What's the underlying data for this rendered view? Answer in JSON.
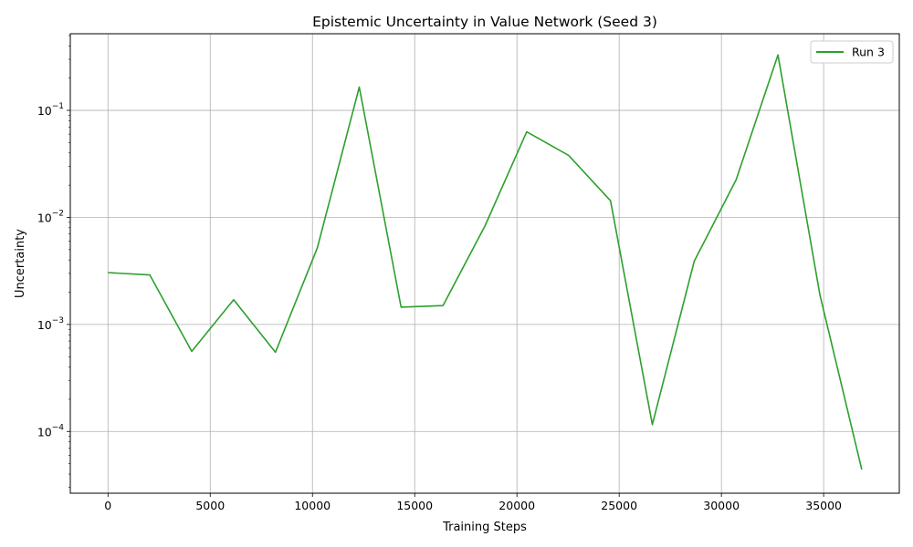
{
  "chart_data": {
    "type": "line",
    "title": "Epistemic Uncertainty in Value Network (Seed 3)",
    "xlabel": "Training Steps",
    "ylabel": "Uncertainty",
    "xlim": [
      -1843,
      38700
    ],
    "ylim": [
      2.65e-05,
      0.52
    ],
    "yscale": "log",
    "grid": true,
    "legend_position": "top-right",
    "x_ticks": [
      0,
      5000,
      10000,
      15000,
      20000,
      25000,
      30000,
      35000
    ],
    "y_ticks": [
      {
        "value": 0.0001,
        "base": "10",
        "exp": "−4"
      },
      {
        "value": 0.001,
        "base": "10",
        "exp": "−3"
      },
      {
        "value": 0.01,
        "base": "10",
        "exp": "−2"
      },
      {
        "value": 0.1,
        "base": "10",
        "exp": "−1"
      }
    ],
    "series": [
      {
        "name": "Run 3",
        "color": "#2ca02c",
        "x": [
          0,
          2048,
          4096,
          6144,
          8192,
          10240,
          12288,
          14336,
          16384,
          18432,
          20480,
          22528,
          24576,
          26624,
          28672,
          30720,
          32768,
          34816,
          36864
        ],
        "y": [
          0.00305,
          0.0029,
          0.00056,
          0.0017,
          0.00055,
          0.0052,
          0.165,
          0.00145,
          0.0015,
          0.0083,
          0.063,
          0.038,
          0.0143,
          0.000116,
          0.0039,
          0.0225,
          0.33,
          0.0019,
          4.4e-05
        ]
      }
    ]
  }
}
